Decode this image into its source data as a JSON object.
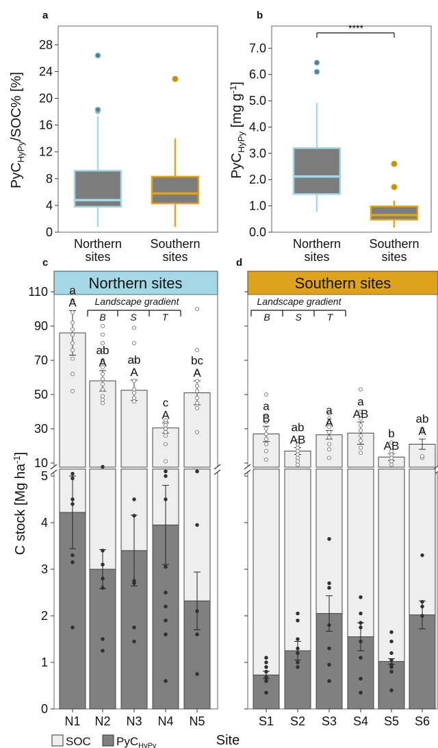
{
  "colors": {
    "north": "#a5d8e6",
    "south": "#dfa21c",
    "soc": "#eeeeee",
    "pyc": "#808080",
    "box_fill": "#7c7c7c",
    "outlier_north": "#5a7f96",
    "outlier_south": "#c4901c"
  },
  "chart_data": [
    {
      "id": "a",
      "panel_label": "a",
      "type": "box",
      "ylabel_main": "PyC",
      "ylabel_sub": "HyPy",
      "ylabel_rest": "/SOC% [%]",
      "ylim": [
        0,
        29
      ],
      "yticks": [
        "0",
        "4",
        "8",
        "12",
        "16",
        "20",
        "24",
        "28"
      ],
      "categories": [
        "Northern\nsites",
        "Southern\nsites"
      ],
      "boxes": [
        {
          "name": "Northern sites",
          "whisker_low": 0.8,
          "q1": 3.8,
          "median": 4.8,
          "q3": 9.2,
          "whisker_high": 17.3,
          "outliers": [
            18.1,
            18.3,
            26.4
          ]
        },
        {
          "name": "Southern sites",
          "whisker_low": 0.8,
          "q1": 4.3,
          "median": 5.8,
          "q3": 8.3,
          "whisker_high": 14.0,
          "outliers": [
            22.9
          ]
        }
      ]
    },
    {
      "id": "b",
      "panel_label": "b",
      "type": "box",
      "ylabel_main": "PyC",
      "ylabel_sub": "HyPy",
      "ylabel_rest": " [mg g",
      "ylabel_sup": "-1",
      "ylabel_end": "]",
      "ylim": [
        0,
        7.4
      ],
      "yticks": [
        "0.0",
        "1.0",
        "2.0",
        "3.0",
        "4.0",
        "5.0",
        "6.0",
        "7.0"
      ],
      "categories": [
        "Northern\nsites",
        "Southern\nsites"
      ],
      "significance": "****",
      "boxes": [
        {
          "name": "Northern sites",
          "whisker_low": 0.78,
          "q1": 1.45,
          "median": 2.12,
          "q3": 3.2,
          "whisker_high": 4.92,
          "outliers": [
            6.1,
            6.45
          ]
        },
        {
          "name": "Southern sites",
          "whisker_low": 0.18,
          "q1": 0.48,
          "median": 0.65,
          "q3": 0.98,
          "whisker_high": 1.2,
          "outliers": [
            1.72,
            2.6
          ]
        }
      ]
    },
    {
      "id": "c",
      "panel_label": "c",
      "type": "bar",
      "header": "Northern sites",
      "gradient_label": "Landscape gradient",
      "gradient_marks": [
        "B",
        "S",
        "T"
      ],
      "categories": [
        "N1",
        "N2",
        "N3",
        "N4",
        "N5"
      ],
      "soc": [
        86,
        58,
        52.5,
        30.5,
        51
      ],
      "soc_err": [
        13,
        6,
        6,
        3,
        7
      ],
      "pyc": [
        4.22,
        3.0,
        3.4,
        3.95,
        2.32
      ],
      "pyc_err": [
        0.78,
        0.42,
        0.76,
        0.85,
        0.62
      ],
      "letters_lower": [
        "a",
        "ab",
        "ab",
        "c",
        "bc"
      ],
      "letters_upper": [
        "A",
        "A",
        "A",
        "A",
        "A"
      ],
      "soc_points": [
        [
          52,
          62,
          71,
          76,
          80,
          85,
          88,
          92,
          98,
          105,
          111
        ],
        [
          45,
          47,
          49,
          53,
          56,
          59,
          62,
          66,
          70,
          76,
          80,
          85,
          90
        ],
        [
          46,
          48,
          51,
          53,
          58,
          70,
          80,
          89
        ],
        [
          11,
          21,
          26,
          28,
          30,
          32,
          34,
          35
        ],
        [
          28,
          42,
          45,
          48,
          52,
          55,
          58,
          63,
          76,
          100
        ]
      ],
      "pyc_points": [
        [
          1.75,
          3.15,
          3.3,
          4.4,
          4.5,
          4.95,
          5.05
        ],
        [
          1.25,
          1.5,
          2.6,
          2.8,
          3.1,
          3.4,
          5.2
        ],
        [
          1.45,
          1.75,
          2.7,
          2.75,
          4.15,
          4.5
        ],
        [
          0.6,
          1.6,
          1.9,
          2.2,
          2.5,
          3.05,
          4.5,
          5.0,
          5.1
        ],
        [
          0.75,
          1.6,
          2.1,
          3.95,
          5.1
        ]
      ],
      "xlabel": "Site"
    },
    {
      "id": "d",
      "panel_label": "d",
      "type": "bar",
      "header": "Southern sites",
      "gradient_label": "Landscape gradient",
      "gradient_marks": [
        "B",
        "S",
        "T"
      ],
      "categories": [
        "S1",
        "S2",
        "S3",
        "S4",
        "S5",
        "S6"
      ],
      "soc": [
        27,
        17,
        26.5,
        27.5,
        13.5,
        21
      ],
      "soc_err": [
        4.5,
        2,
        2.5,
        6.5,
        2,
        3
      ],
      "pyc": [
        0.73,
        1.25,
        2.05,
        1.55,
        1.02,
        2.02
      ],
      "pyc_err": [
        0.08,
        0.2,
        0.38,
        0.3,
        0.06,
        0.3
      ],
      "letters_lower": [
        "a",
        "ab",
        "a",
        "a",
        "b",
        "ab"
      ],
      "letters_upper": [
        "B",
        "AB",
        "A",
        "AB",
        "AB",
        "A"
      ],
      "soc_points": [
        [
          12,
          17,
          21,
          24,
          27,
          30,
          34,
          38,
          50
        ],
        [
          9,
          11,
          13,
          15,
          17,
          19,
          21,
          23
        ],
        [
          13,
          18,
          21,
          25,
          28,
          31,
          33,
          36,
          39
        ],
        [
          16,
          19,
          23,
          26,
          29,
          32,
          36,
          40,
          53
        ],
        [
          9,
          11,
          13,
          15,
          17,
          22
        ],
        [
          13,
          14,
          28,
          30
        ]
      ],
      "pyc_points": [
        [
          0.35,
          0.6,
          0.68,
          0.8,
          0.9,
          1.0,
          1.1
        ],
        [
          0.9,
          1.0,
          1.2,
          1.3,
          1.5,
          1.9,
          2.05
        ],
        [
          0.6,
          0.95,
          1.3,
          1.8,
          2.6,
          2.7,
          3.65
        ],
        [
          0.35,
          0.65,
          1.1,
          1.45,
          1.75,
          1.85,
          2.05,
          2.4
        ],
        [
          0.4,
          0.8,
          0.9,
          0.95,
          1.05,
          1.2,
          1.45,
          1.65
        ],
        [
          2.0,
          2.2,
          2.3,
          3.3
        ]
      ]
    }
  ],
  "c_y": {
    "ylabel_main": "C stock [Mg ha",
    "ylabel_sup": "-1",
    "ylabel_end": "]",
    "upper_ticks": [
      "10",
      "30",
      "50",
      "70",
      "90",
      "110"
    ],
    "lower_ticks": [
      "0",
      "1",
      "2",
      "3",
      "4",
      "5"
    ]
  },
  "legend": {
    "soc": "SOC",
    "pyc_main": "PyC",
    "pyc_sub": "HyPy"
  }
}
